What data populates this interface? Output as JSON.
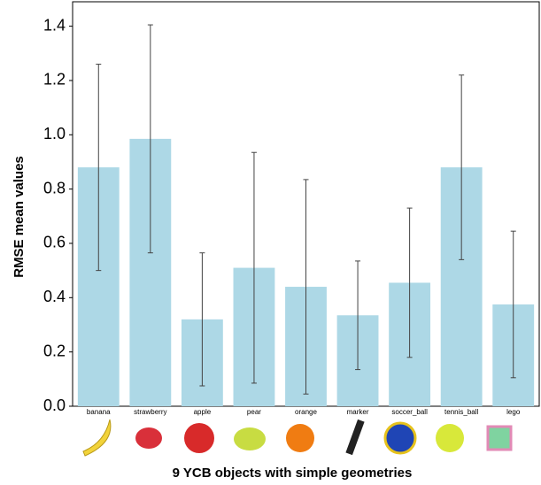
{
  "chart_data": {
    "type": "bar",
    "categories": [
      "banana",
      "strawberry",
      "apple",
      "pear",
      "orange",
      "marker",
      "soccer_ball",
      "tennis_ball",
      "lego"
    ],
    "values": [
      0.88,
      0.985,
      0.32,
      0.51,
      0.44,
      0.335,
      0.455,
      0.88,
      0.375
    ],
    "errors": [
      0.38,
      0.42,
      0.245,
      0.425,
      0.395,
      0.2,
      0.275,
      0.34,
      0.27
    ],
    "color": "#add8e6",
    "ylim": [
      0,
      1.49
    ],
    "yticks": [
      {
        "value": 0,
        "label": "0.0"
      },
      0.2,
      0.4,
      0.6,
      0.8,
      {
        "value": 1,
        "label": "1.0"
      },
      1.2,
      1.4
    ],
    "xlabel": "9 YCB objects with simple geometries",
    "ylabel": "RMSE mean values"
  }
}
